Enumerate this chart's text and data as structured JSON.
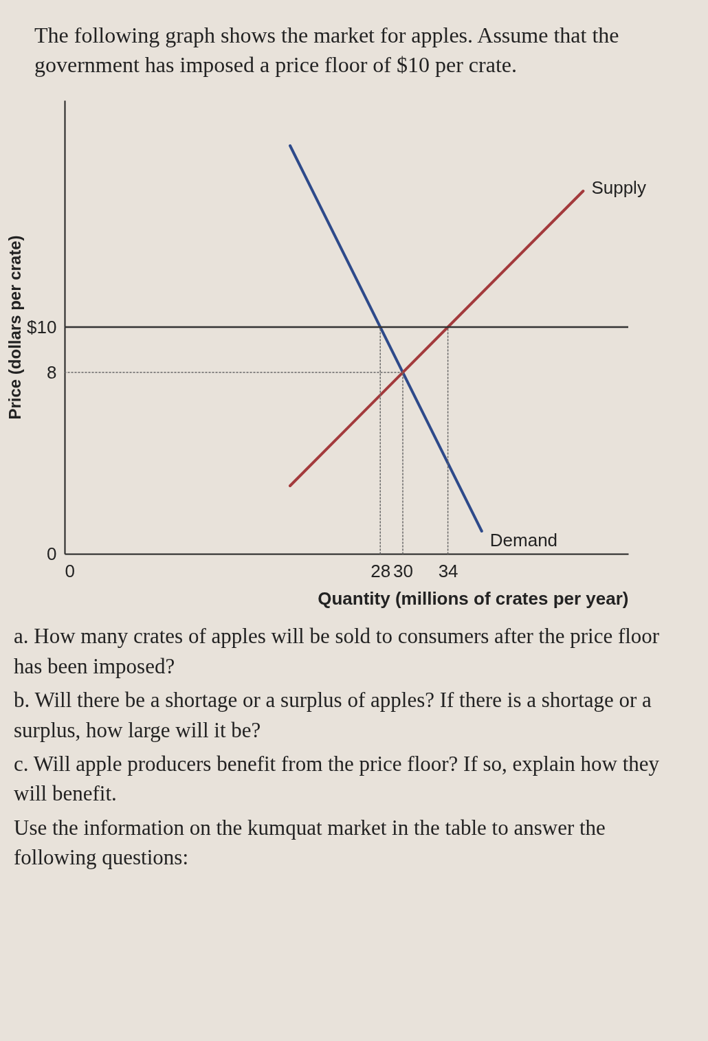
{
  "chart_data": {
    "type": "line",
    "title": "The following graph shows the market for apples. Assume that the government has imposed a price floor of $10 per crate.",
    "xlabel": "Quantity (millions of crates per year)",
    "ylabel": "Price (dollars per crate)",
    "xlim": [
      0,
      50
    ],
    "ylim": [
      0,
      20
    ],
    "xticks": [
      0,
      28,
      30,
      34
    ],
    "yticks": [
      0,
      8,
      {
        "value": 10,
        "label": "$10"
      }
    ],
    "grid": false,
    "series": [
      {
        "name": "Demand",
        "color": "#2e4a8a",
        "x": [
          20,
          37
        ],
        "values": [
          18,
          1
        ]
      },
      {
        "name": "Supply",
        "color": "#a33a3c",
        "x": [
          20,
          46
        ],
        "values": [
          3,
          16
        ]
      },
      {
        "color": "#666666",
        "line_style": "dotted",
        "x": [
          28,
          28
        ],
        "values": [
          0,
          10
        ]
      },
      {
        "color": "#666666",
        "line_style": "dotted",
        "x": [
          30,
          30
        ],
        "values": [
          0,
          8
        ]
      },
      {
        "color": "#666666",
        "line_style": "dotted",
        "x": [
          34,
          34
        ],
        "values": [
          0,
          10
        ]
      },
      {
        "color": "#666666",
        "line_style": "dotted",
        "x": [
          0,
          30
        ],
        "values": [
          8,
          8
        ]
      }
    ],
    "ref_lines": [
      {
        "axis": "y",
        "value": 10,
        "color": "#333333",
        "line_style": "solid"
      }
    ],
    "annotations": [
      "a. How many crates of apples will be sold to consumers after the price floor has been imposed?",
      "b. Will there be a shortage or a surplus of apples? If there is a shortage or a surplus, how large will it be?",
      "c. Will apple producers benefit from the price floor? If so, explain how they will benefit.",
      "Use the information on the kumquat market in the table to answer the following questions:"
    ]
  }
}
